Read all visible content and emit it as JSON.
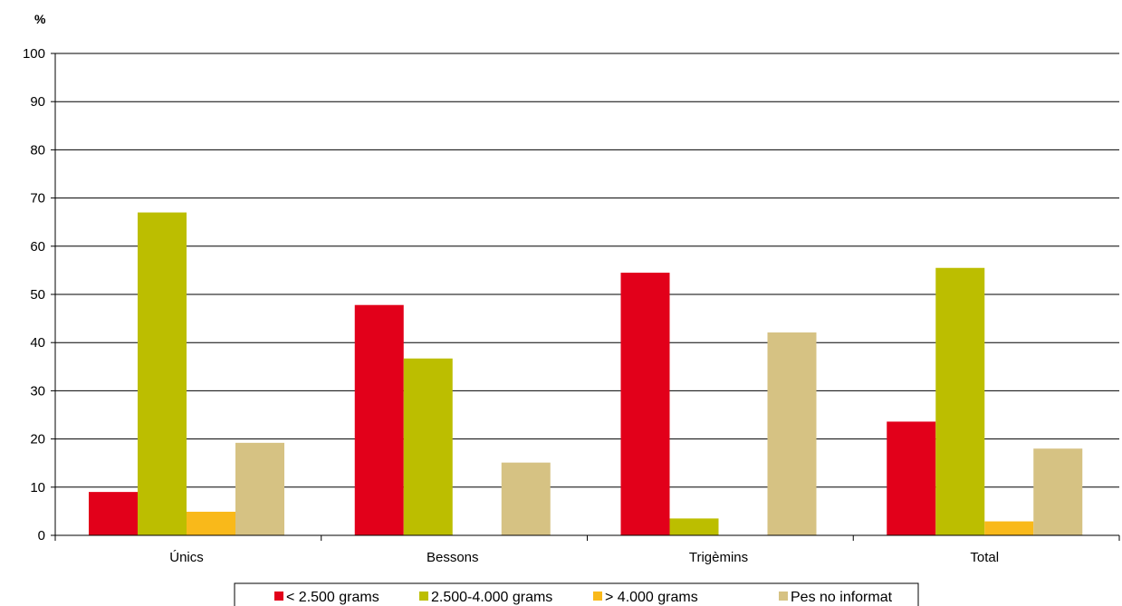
{
  "chart_data": {
    "type": "bar",
    "title": "",
    "xlabel": "",
    "ylabel": "%",
    "ylim": [
      0,
      100
    ],
    "yticks": [
      0,
      10,
      20,
      30,
      40,
      50,
      60,
      70,
      80,
      90,
      100
    ],
    "grid": true,
    "legend_position": "bottom",
    "categories": [
      "Únics",
      "Bessons",
      "Trigèmins",
      "Total"
    ],
    "series": [
      {
        "name": "< 2.500 grams",
        "color": "#e2001a",
        "values": [
          9,
          47.8,
          54.5,
          23.6
        ]
      },
      {
        "name": "2.500-4.000 grams",
        "color": "#bcbe00",
        "values": [
          67,
          36.7,
          3.5,
          55.5
        ]
      },
      {
        "name": "> 4.000 grams",
        "color": "#f9b91a",
        "values": [
          4.9,
          0,
          0,
          2.9
        ]
      },
      {
        "name": "Pes no informat",
        "color": "#d6c283",
        "values": [
          19.2,
          15.1,
          42.1,
          18
        ]
      }
    ]
  }
}
